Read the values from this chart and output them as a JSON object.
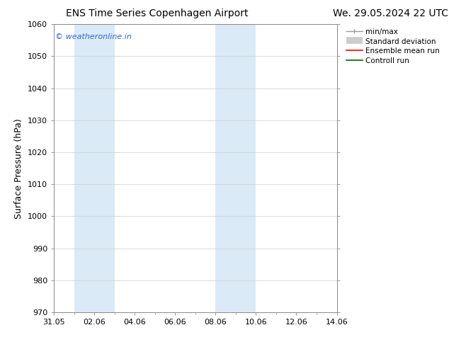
{
  "title_left": "ENS Time Series Copenhagen Airport",
  "title_right": "We. 29.05.2024 22 UTC",
  "ylabel": "Surface Pressure (hPa)",
  "ylim": [
    970,
    1060
  ],
  "yticks": [
    970,
    980,
    990,
    1000,
    1010,
    1020,
    1030,
    1040,
    1050,
    1060
  ],
  "xtick_labels": [
    "31.05",
    "02.06",
    "04.06",
    "06.06",
    "08.06",
    "10.06",
    "12.06",
    "14.06"
  ],
  "xtick_positions": [
    0,
    2,
    4,
    6,
    8,
    10,
    12,
    14
  ],
  "minor_xtick_positions": [
    1,
    3,
    5,
    7,
    9,
    11,
    13
  ],
  "shaded_bands": [
    {
      "x_start": 1.0,
      "x_end": 3.0
    },
    {
      "x_start": 8.0,
      "x_end": 10.0
    }
  ],
  "shaded_color": "#daeaf6",
  "watermark_text": "© weatheronline.in",
  "watermark_color": "#3366cc",
  "bg_color": "#ffffff",
  "spine_color": "#888888",
  "grid_color": "#cccccc",
  "title_fontsize": 10,
  "ylabel_fontsize": 9,
  "tick_fontsize": 8,
  "watermark_fontsize": 8,
  "legend_fontsize": 7.5
}
